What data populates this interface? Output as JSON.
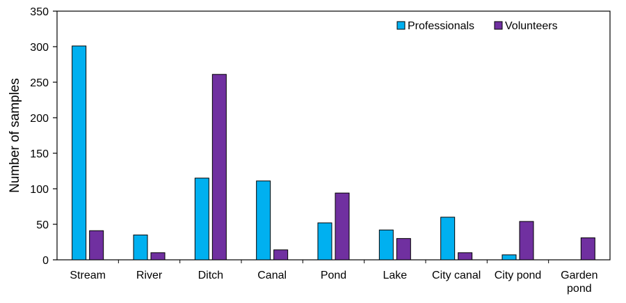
{
  "chart_data": {
    "type": "bar",
    "title": "",
    "xlabel": "",
    "ylabel": "Number of samples",
    "ylim": [
      0,
      350
    ],
    "yticks": [
      0,
      50,
      100,
      150,
      200,
      250,
      300,
      350
    ],
    "grid": false,
    "legend_position": "top-right",
    "categories": [
      [
        "Stream"
      ],
      [
        "River"
      ],
      [
        "Ditch"
      ],
      [
        "Canal"
      ],
      [
        "Pond"
      ],
      [
        "Lake"
      ],
      [
        "City canal"
      ],
      [
        "City pond"
      ],
      [
        "Garden",
        "pond"
      ]
    ],
    "series": [
      {
        "name": "Professionals",
        "color": "#00B0F0",
        "values": [
          301,
          35,
          115,
          111,
          52,
          42,
          60,
          7,
          0
        ]
      },
      {
        "name": "Volunteers",
        "color": "#7030A0",
        "values": [
          41,
          10,
          261,
          14,
          94,
          30,
          10,
          54,
          31
        ]
      }
    ]
  }
}
